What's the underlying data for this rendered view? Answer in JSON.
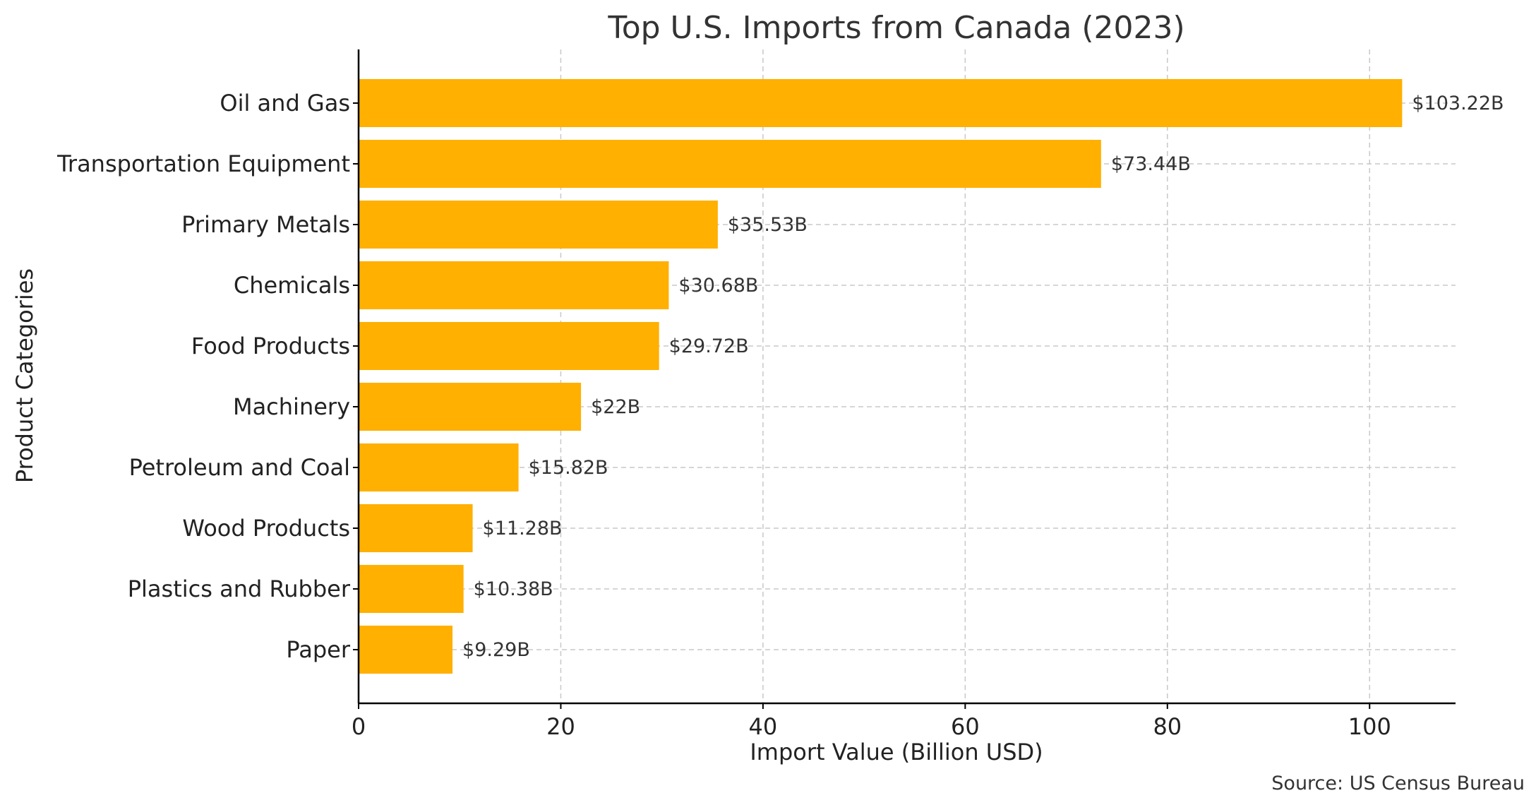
{
  "chart_data": {
    "type": "bar",
    "orientation": "horizontal",
    "title": "Top U.S. Imports from Canada (2023)",
    "xlabel": "Import Value (Billion USD)",
    "ylabel": "Product Categories",
    "categories": [
      "Oil and Gas",
      "Transportation Equipment",
      "Primary Metals",
      "Chemicals",
      "Food Products",
      "Machinery",
      "Petroleum and Coal",
      "Wood Products",
      "Plastics and Rubber",
      "Paper"
    ],
    "values": [
      103.22,
      73.44,
      35.53,
      30.68,
      29.72,
      22,
      15.82,
      11.28,
      10.38,
      9.29
    ],
    "data_labels": [
      "$103.22B",
      "$73.44B",
      "$35.53B",
      "$30.68B",
      "$29.72B",
      "$22B",
      "$15.82B",
      "$11.28B",
      "$10.38B",
      "$9.29B"
    ],
    "xlim": [
      0,
      108.5
    ],
    "xticks": [
      0,
      20,
      40,
      60,
      80,
      100
    ],
    "grid": true,
    "bar_color": "#FFB000",
    "source": "Source: US Census Bureau"
  }
}
